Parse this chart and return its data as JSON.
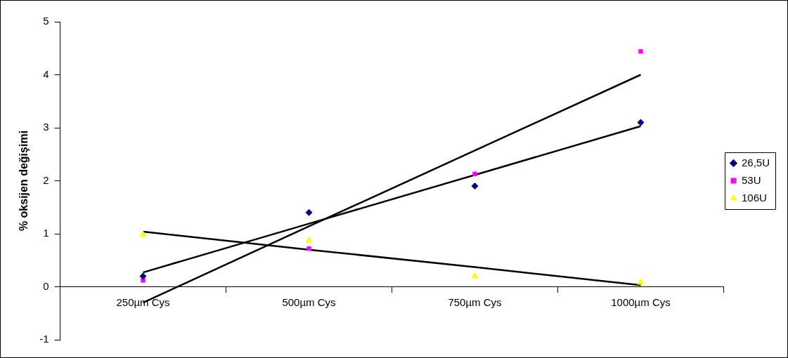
{
  "chart_data": {
    "type": "scatter",
    "ylabel": "% oksijen değişimi",
    "categories": [
      "250µm Cys",
      "500µm Cys",
      "750µm Cys",
      "1000µm Cys"
    ],
    "series": [
      {
        "name": "26,5U",
        "color": "#000080",
        "marker": "diamond",
        "values": [
          0.2,
          1.4,
          1.9,
          3.1
        ]
      },
      {
        "name": "53U",
        "color": "#ff00ff",
        "marker": "square",
        "values": [
          0.12,
          0.72,
          2.13,
          4.44
        ]
      },
      {
        "name": "106U",
        "color": "#ffff00",
        "marker": "triangle",
        "values": [
          0.98,
          0.87,
          0.2,
          0.08
        ]
      },
      {
        "type": "line",
        "color": "#000000",
        "marker": "none",
        "values": [
          0.27,
          1.19,
          2.11,
          3.03
        ]
      },
      {
        "type": "line",
        "color": "#000000",
        "marker": "none",
        "values": [
          -0.3,
          1.14,
          2.57,
          4.0
        ]
      },
      {
        "type": "line",
        "color": "#000000",
        "marker": "none",
        "values": [
          1.04,
          0.7,
          0.37,
          0.03
        ]
      }
    ],
    "ylim": [
      -1,
      5
    ],
    "yticks": [
      -1,
      0,
      1,
      2,
      3,
      4,
      5
    ],
    "grid": false,
    "legend": "right"
  }
}
